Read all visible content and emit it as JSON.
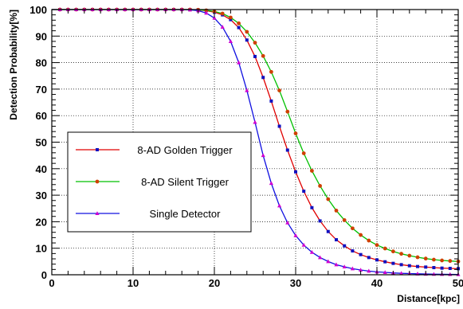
{
  "chart_data": {
    "type": "line",
    "title": "",
    "xlabel": "Distance[kpc]",
    "ylabel": "Detection Probability[%]",
    "xlim": [
      0,
      50
    ],
    "ylim": [
      0,
      100
    ],
    "xticks": [
      0,
      10,
      20,
      30,
      40,
      50
    ],
    "yticks": [
      0,
      10,
      20,
      30,
      40,
      50,
      60,
      70,
      80,
      90,
      100
    ],
    "grid": true,
    "legend_position": "center-left",
    "x": [
      1,
      2,
      3,
      4,
      5,
      6,
      7,
      8,
      9,
      10,
      11,
      12,
      13,
      14,
      15,
      16,
      17,
      18,
      19,
      20,
      21,
      22,
      23,
      24,
      25,
      26,
      27,
      28,
      29,
      30,
      31,
      32,
      33,
      34,
      35,
      36,
      37,
      38,
      39,
      40,
      41,
      42,
      43,
      44,
      45,
      46,
      47,
      48,
      49,
      50
    ],
    "series": [
      {
        "name": "8-AD Golden Trigger",
        "color": "#e00000",
        "marker_color": "#1010c0",
        "marker": "square",
        "values": [
          100,
          100,
          100,
          100,
          100,
          100,
          100,
          100,
          100,
          100,
          100,
          100,
          100,
          100,
          100,
          100,
          100,
          99.9,
          99.6,
          99,
          98,
          96.2,
          93.2,
          88.5,
          82.3,
          74.4,
          65.5,
          56,
          47,
          38.8,
          31.5,
          25.3,
          20.3,
          16.3,
          13.2,
          10.9,
          9,
          7.6,
          6.5,
          5.6,
          4.9,
          4.3,
          3.8,
          3.4,
          3.1,
          2.9,
          2.7,
          2.5,
          2.4,
          2.3
        ]
      },
      {
        "name": "8-AD Silent Trigger",
        "color": "#00c000",
        "marker_color": "#d04000",
        "marker": "circle",
        "values": [
          100,
          100,
          100,
          100,
          100,
          100,
          100,
          100,
          100,
          100,
          100,
          100,
          100,
          100,
          100,
          100,
          100,
          99.9,
          99.7,
          99.3,
          98.5,
          97,
          94.8,
          91.6,
          87.5,
          82.5,
          76.5,
          69.5,
          61.5,
          53.3,
          45.8,
          39.2,
          33.5,
          28.5,
          24.2,
          20.6,
          17.5,
          15,
          12.9,
          11.2,
          9.9,
          8.8,
          7.9,
          7.2,
          6.6,
          6.1,
          5.7,
          5.4,
          5.2,
          5
        ]
      },
      {
        "name": "Single Detector",
        "color": "#1010e0",
        "marker_color": "#d000d0",
        "marker": "triangle",
        "values": [
          100,
          100,
          100,
          100,
          100,
          100,
          100,
          100,
          100,
          100,
          100,
          100,
          100,
          100,
          100,
          100,
          99.9,
          99.6,
          98.7,
          96.8,
          93.4,
          88,
          80,
          69.5,
          57.5,
          45,
          34.5,
          26,
          19.6,
          14.8,
          11.2,
          8.5,
          6.5,
          5,
          3.8,
          3,
          2.3,
          1.8,
          1.4,
          1.1,
          0.9,
          0.7,
          0.55,
          0.45,
          0.35,
          0.28,
          0.22,
          0.18,
          0.14,
          0.1
        ]
      }
    ]
  }
}
